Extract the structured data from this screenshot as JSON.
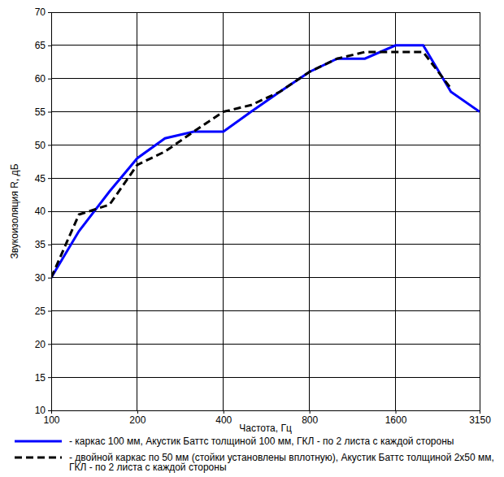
{
  "chart_data": {
    "type": "line",
    "x_label": "Частота, Гц",
    "y_label": "Звукоизоляция R, дБ",
    "x": [
      100,
      125,
      160,
      200,
      250,
      315,
      400,
      500,
      630,
      800,
      1000,
      1250,
      1600,
      2000,
      2500,
      3150
    ],
    "series": [
      {
        "name": "- каркас 100 мм, Акустик Баттс толщиной 100 мм, ГКЛ - по 2 листа с каждой стороны",
        "color": "#0000ff",
        "line_style": "solid",
        "values": [
          30,
          37,
          43,
          48,
          51,
          52,
          52,
          55,
          58,
          61,
          63,
          63,
          65,
          65,
          58,
          55
        ]
      },
      {
        "name": "- двойной каркас по 50 мм (стойки установлены вплотную), Акустик Баттс толщиной 2х50 мм, ГКЛ - по 2 листа с каждой стороны",
        "color": "#000000",
        "line_style": "dashed",
        "values": [
          30,
          39.5,
          41,
          47,
          49,
          52,
          55,
          56,
          58,
          61,
          63,
          64,
          64,
          64,
          58.5,
          null
        ]
      }
    ],
    "xlim": [
      100,
      3150
    ],
    "xticks": [
      100,
      200,
      400,
      800,
      1600,
      3150
    ],
    "ylim": [
      10,
      70
    ],
    "yticks": [
      10,
      15,
      20,
      25,
      30,
      35,
      40,
      45,
      50,
      55,
      60,
      65,
      70
    ],
    "log": "x",
    "grid": true,
    "legend": "bottom"
  }
}
